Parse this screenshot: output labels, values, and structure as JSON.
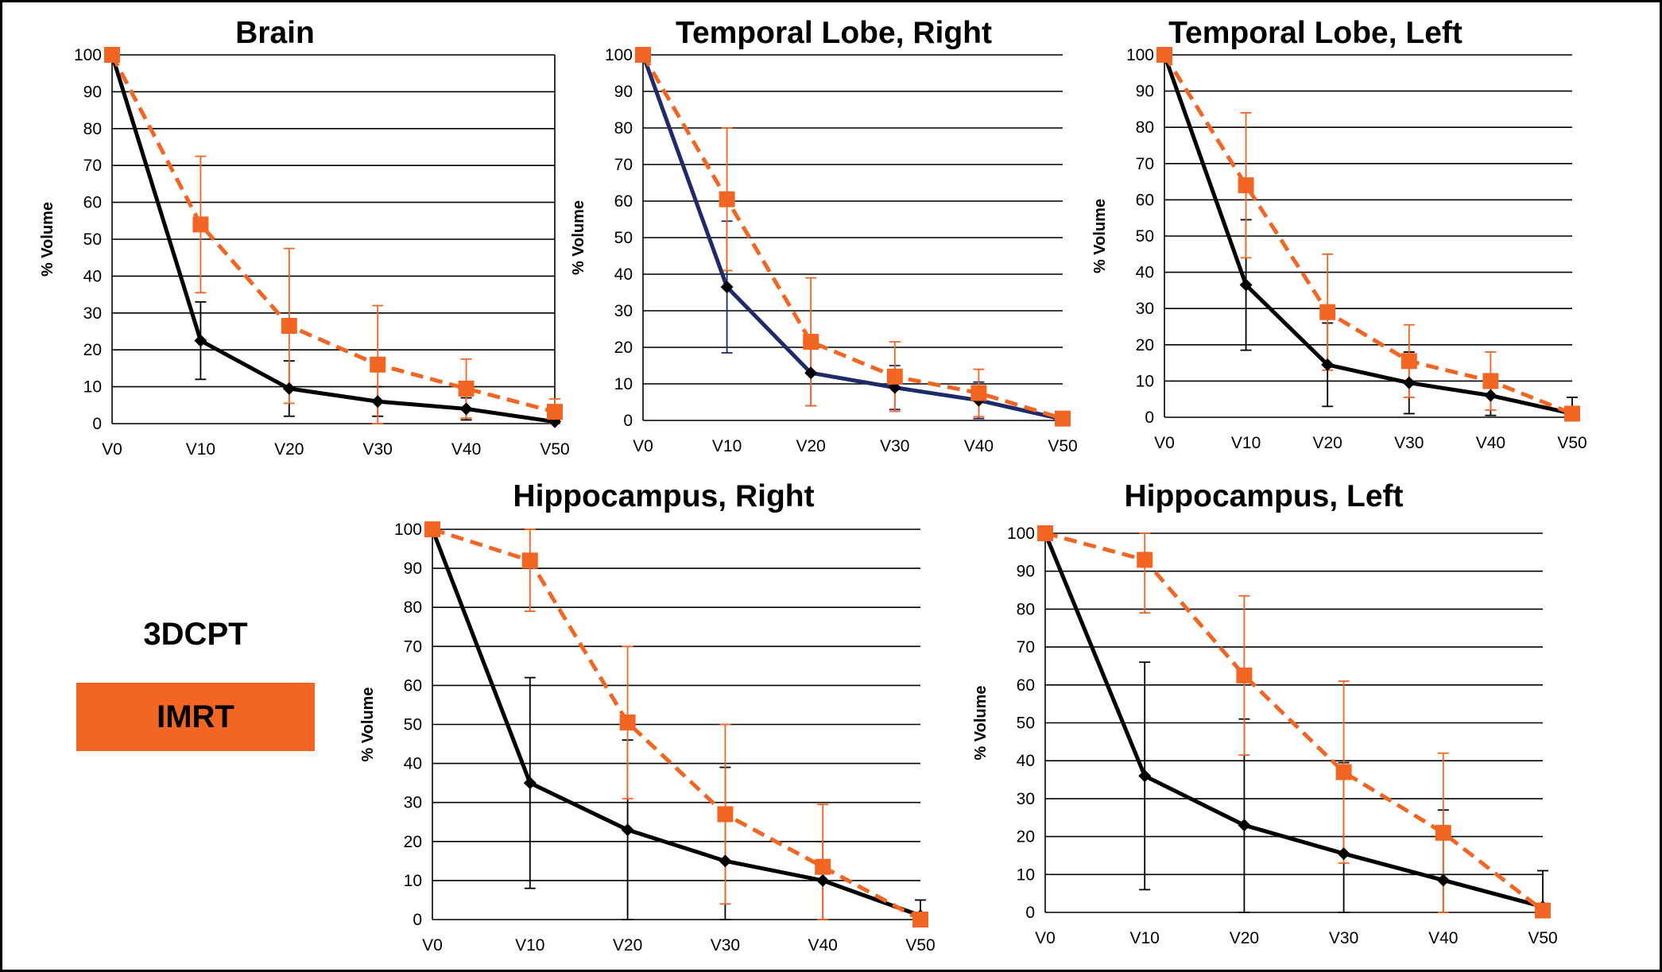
{
  "legend": {
    "series_1": "3DCPT",
    "series_2": "IMRT",
    "series_2_color": "#f26522"
  },
  "colors": {
    "black_series": "#000000",
    "navy_series": "#1f2a6b",
    "orange_series": "#f26522",
    "grid": "#000000"
  },
  "chart_data": [
    {
      "type": "line",
      "title": "Brain",
      "xlabel": "",
      "ylabel": "% Volume",
      "categories": [
        "V0",
        "V10",
        "V20",
        "V30",
        "V40",
        "V50"
      ],
      "ylim": [
        0,
        100
      ],
      "yticks": [
        0,
        10,
        20,
        30,
        40,
        50,
        60,
        70,
        80,
        90,
        100
      ],
      "grid": true,
      "right_axis_line": true,
      "series": [
        {
          "name": "3DCPT",
          "color": "#000000",
          "dashed": false,
          "marker": "diamond",
          "values": [
            100,
            22.5,
            9.5,
            6,
            4,
            0.5
          ],
          "error": [
            null,
            10.5,
            7.5,
            4,
            3,
            0.5
          ]
        },
        {
          "name": "IMRT",
          "color": "#f26522",
          "dashed": true,
          "marker": "square",
          "values": [
            100,
            54,
            26.5,
            16,
            9.5,
            3.2
          ],
          "error": [
            null,
            18.5,
            21,
            16,
            8,
            3.5
          ]
        }
      ]
    },
    {
      "type": "line",
      "title": "Temporal Lobe, Right",
      "xlabel": "",
      "ylabel": "% Volume",
      "categories": [
        "V0",
        "V10",
        "V20",
        "V30",
        "V40",
        "V50"
      ],
      "ylim": [
        0,
        100
      ],
      "yticks": [
        0,
        10,
        20,
        30,
        40,
        50,
        60,
        70,
        80,
        90,
        100
      ],
      "grid": true,
      "right_axis_line": false,
      "series": [
        {
          "name": "3DCPT",
          "color": "#1f2a6b",
          "dashed": false,
          "marker": "diamond",
          "values": [
            100,
            36.5,
            13,
            9,
            5.5,
            0.3
          ],
          "error": [
            null,
            18,
            9,
            6,
            5,
            null
          ]
        },
        {
          "name": "IMRT",
          "color": "#f26522",
          "dashed": true,
          "marker": "square",
          "values": [
            100,
            60.5,
            21.5,
            12,
            7.5,
            0.5
          ],
          "error": [
            null,
            19.5,
            17.5,
            9.5,
            6.5,
            null
          ]
        }
      ]
    },
    {
      "type": "line",
      "title": "Temporal Lobe, Left",
      "xlabel": "",
      "ylabel": "% Volume",
      "categories": [
        "V0",
        "V10",
        "V20",
        "V30",
        "V40",
        "V50"
      ],
      "ylim": [
        0,
        100
      ],
      "yticks": [
        0,
        10,
        20,
        30,
        40,
        50,
        60,
        70,
        80,
        90,
        100
      ],
      "grid": true,
      "right_axis_line": false,
      "series": [
        {
          "name": "3DCPT",
          "color": "#000000",
          "dashed": false,
          "marker": "diamond",
          "values": [
            100,
            36.5,
            14.5,
            9.5,
            6,
            1
          ],
          "error": [
            null,
            18,
            11.5,
            8.5,
            5.5,
            4.5
          ]
        },
        {
          "name": "IMRT",
          "color": "#f26522",
          "dashed": true,
          "marker": "square",
          "values": [
            100,
            64,
            29,
            15.5,
            10,
            1
          ],
          "error": [
            null,
            20,
            16,
            10,
            8,
            null
          ]
        }
      ]
    },
    {
      "type": "line",
      "title": "Hippocampus, Right",
      "xlabel": "",
      "ylabel": "% Volume",
      "categories": [
        "V0",
        "V10",
        "V20",
        "V30",
        "V40",
        "V50"
      ],
      "ylim": [
        0,
        100
      ],
      "yticks": [
        0,
        10,
        20,
        30,
        40,
        50,
        60,
        70,
        80,
        90,
        100
      ],
      "grid": true,
      "right_axis_line": false,
      "series": [
        {
          "name": "3DCPT",
          "color": "#000000",
          "dashed": false,
          "marker": "diamond",
          "values": [
            100,
            35,
            23,
            15,
            10,
            1
          ],
          "error": [
            null,
            27,
            23,
            24,
            10,
            4
          ]
        },
        {
          "name": "IMRT",
          "color": "#f26522",
          "dashed": true,
          "marker": "square",
          "values": [
            100,
            92,
            50.5,
            27,
            13.5,
            0
          ],
          "error": [
            null,
            13,
            19.5,
            23,
            16,
            null
          ]
        }
      ]
    },
    {
      "type": "line",
      "title": "Hippocampus, Left",
      "xlabel": "",
      "ylabel": "% Volume",
      "categories": [
        "V0",
        "V10",
        "V20",
        "V30",
        "V40",
        "V50"
      ],
      "ylim": [
        0,
        100
      ],
      "yticks": [
        0,
        10,
        20,
        30,
        40,
        50,
        60,
        70,
        80,
        90,
        100
      ],
      "grid": true,
      "right_axis_line": false,
      "series": [
        {
          "name": "3DCPT",
          "color": "#000000",
          "dashed": false,
          "marker": "diamond",
          "values": [
            100,
            36,
            23,
            15.5,
            8.5,
            1.5
          ],
          "error": [
            null,
            30,
            28,
            24,
            18.5,
            9.5
          ]
        },
        {
          "name": "IMRT",
          "color": "#f26522",
          "dashed": true,
          "marker": "square",
          "values": [
            100,
            93,
            62.5,
            37,
            21,
            0.5
          ],
          "error": [
            null,
            14,
            21,
            24,
            21,
            null
          ]
        }
      ]
    }
  ]
}
